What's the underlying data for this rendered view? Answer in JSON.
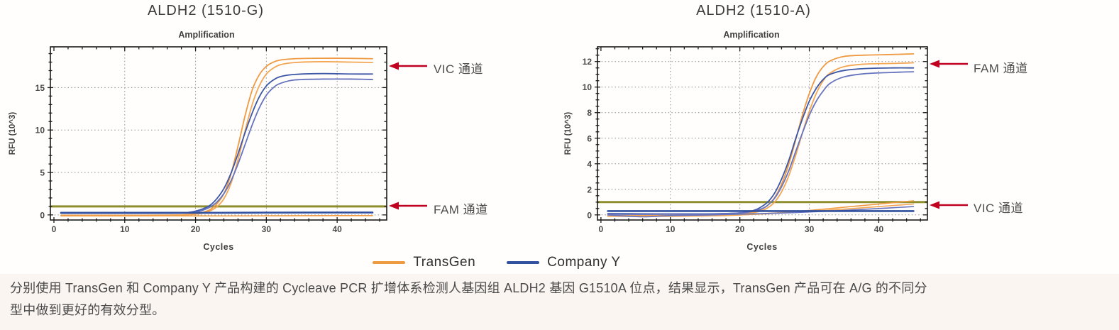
{
  "page": {
    "background": "#fffefc",
    "caption_background": "#faf5f1"
  },
  "chart_data": [
    {
      "type": "line",
      "title": "ALDH2 (1510-G)",
      "subtitle": "Amplification",
      "xlabel": "Cycles",
      "ylabel": "RFU (10^3)",
      "xlim": [
        -0.5,
        47
      ],
      "ylim": [
        -0.6,
        19.8
      ],
      "xticks": [
        0,
        10,
        20,
        30,
        40
      ],
      "yticks": [
        0,
        5,
        10,
        15
      ],
      "x_minor_step": 2,
      "y_minor_step": 1,
      "x_gridlines": [
        10,
        20,
        30,
        40
      ],
      "grid": "dotted",
      "legend_position": "none",
      "threshold": {
        "y": 1.0,
        "color": "#8e8e2d"
      },
      "annotations": [
        {
          "label": "VIC 通道",
          "arrow": "left",
          "color": "#bf0021"
        },
        {
          "label": "FAM 通道",
          "arrow": "left",
          "color": "#bf0021"
        }
      ],
      "series": [
        {
          "name": "TransGen (VIC) rep1",
          "color": "#ef9a42",
          "width": 1.8,
          "points": [
            [
              1,
              -0.05
            ],
            [
              6,
              -0.05
            ],
            [
              12,
              -0.05
            ],
            [
              17,
              -0.02
            ],
            [
              19,
              0.05
            ],
            [
              20,
              0.12
            ],
            [
              21,
              0.3
            ],
            [
              22,
              0.6
            ],
            [
              23,
              1.3
            ],
            [
              24,
              2.5
            ],
            [
              25,
              4.8
            ],
            [
              26,
              8.1
            ],
            [
              27,
              11.7
            ],
            [
              28,
              14.7
            ],
            [
              29,
              16.5
            ],
            [
              30,
              17.5
            ],
            [
              31,
              18.0
            ],
            [
              32,
              18.25
            ],
            [
              34,
              18.4
            ],
            [
              37,
              18.45
            ],
            [
              41,
              18.45
            ],
            [
              45,
              18.4
            ]
          ]
        },
        {
          "name": "TransGen (VIC) rep2",
          "color": "#f3a755",
          "width": 1.8,
          "points": [
            [
              1,
              -0.1
            ],
            [
              8,
              -0.1
            ],
            [
              14,
              -0.08
            ],
            [
              18,
              0.0
            ],
            [
              20,
              0.08
            ],
            [
              21,
              0.2
            ],
            [
              22,
              0.45
            ],
            [
              23,
              0.95
            ],
            [
              24,
              1.9
            ],
            [
              25,
              3.7
            ],
            [
              26,
              6.5
            ],
            [
              27,
              9.9
            ],
            [
              28,
              13.0
            ],
            [
              29,
              15.2
            ],
            [
              30,
              16.6
            ],
            [
              31,
              17.3
            ],
            [
              32,
              17.7
            ],
            [
              34,
              17.95
            ],
            [
              38,
              18.05
            ],
            [
              42,
              18.0
            ],
            [
              45,
              17.95
            ]
          ]
        },
        {
          "name": "Company Y (VIC) rep1",
          "color": "#3c57a6",
          "width": 1.8,
          "points": [
            [
              1,
              0.22
            ],
            [
              8,
              0.22
            ],
            [
              14,
              0.22
            ],
            [
              18,
              0.25
            ],
            [
              19,
              0.3
            ],
            [
              20,
              0.45
            ],
            [
              21,
              0.7
            ],
            [
              22,
              1.1
            ],
            [
              23,
              1.9
            ],
            [
              24,
              3.1
            ],
            [
              25,
              4.9
            ],
            [
              26,
              7.2
            ],
            [
              27,
              9.7
            ],
            [
              28,
              12.0
            ],
            [
              29,
              13.9
            ],
            [
              30,
              15.2
            ],
            [
              31,
              15.9
            ],
            [
              32,
              16.3
            ],
            [
              34,
              16.55
            ],
            [
              38,
              16.65
            ],
            [
              42,
              16.6
            ],
            [
              45,
              16.6
            ]
          ]
        },
        {
          "name": "Company Y (VIC) rep2",
          "color": "#6673be",
          "width": 1.8,
          "points": [
            [
              1,
              0.2
            ],
            [
              8,
              0.2
            ],
            [
              15,
              0.2
            ],
            [
              18,
              0.22
            ],
            [
              20,
              0.35
            ],
            [
              21,
              0.55
            ],
            [
              22,
              0.9
            ],
            [
              23,
              1.5
            ],
            [
              24,
              2.5
            ],
            [
              25,
              4.0
            ],
            [
              26,
              6.0
            ],
            [
              27,
              8.3
            ],
            [
              28,
              10.6
            ],
            [
              29,
              12.6
            ],
            [
              30,
              14.1
            ],
            [
              31,
              15.0
            ],
            [
              32,
              15.5
            ],
            [
              34,
              15.9
            ],
            [
              38,
              16.0
            ],
            [
              42,
              16.0
            ],
            [
              45,
              15.95
            ]
          ]
        },
        {
          "name": "Company Y (FAM) baseline",
          "color": "#30509f",
          "width": 2.6,
          "points": [
            [
              1,
              0.25
            ],
            [
              10,
              0.25
            ],
            [
              20,
              0.25
            ],
            [
              30,
              0.27
            ],
            [
              38,
              0.28
            ],
            [
              45,
              0.28
            ]
          ]
        },
        {
          "name": "TransGen (FAM) baseline",
          "color": "#ef9a42",
          "width": 1.6,
          "points": [
            [
              1,
              -0.1
            ],
            [
              8,
              -0.12
            ],
            [
              16,
              -0.1
            ],
            [
              24,
              -0.12
            ],
            [
              32,
              -0.1
            ],
            [
              40,
              -0.08
            ],
            [
              45,
              -0.08
            ]
          ]
        }
      ]
    },
    {
      "type": "line",
      "title": "ALDH2 (1510-A)",
      "subtitle": "Amplification",
      "xlabel": "Cycles",
      "ylabel": "RFU (10^3)",
      "xlim": [
        -0.5,
        47
      ],
      "ylim": [
        -0.4,
        13.15
      ],
      "xticks": [
        0,
        10,
        20,
        30,
        40
      ],
      "yticks": [
        0,
        2,
        4,
        6,
        8,
        10,
        12
      ],
      "x_minor_step": 2,
      "y_minor_step": 0.5,
      "x_gridlines": [
        10,
        20,
        30,
        40
      ],
      "grid": "dotted",
      "legend_position": "none",
      "threshold": {
        "y": 1.0,
        "color": "#8e8e2d"
      },
      "annotations": [
        {
          "label": "FAM 通道",
          "arrow": "left",
          "color": "#bf0021"
        },
        {
          "label": "VIC 通道",
          "arrow": "left",
          "color": "#bf0021"
        }
      ],
      "series": [
        {
          "name": "TransGen (FAM) rep1",
          "color": "#ef9a42",
          "width": 1.8,
          "points": [
            [
              1,
              -0.05
            ],
            [
              8,
              -0.05
            ],
            [
              15,
              -0.03
            ],
            [
              20,
              0.05
            ],
            [
              22,
              0.2
            ],
            [
              23,
              0.4
            ],
            [
              24,
              0.75
            ],
            [
              25,
              1.35
            ],
            [
              26,
              2.4
            ],
            [
              27,
              3.9
            ],
            [
              28,
              5.8
            ],
            [
              29,
              7.8
            ],
            [
              30,
              9.5
            ],
            [
              31,
              10.8
            ],
            [
              32,
              11.6
            ],
            [
              33,
              12.05
            ],
            [
              35,
              12.4
            ],
            [
              38,
              12.5
            ],
            [
              42,
              12.55
            ],
            [
              45,
              12.6
            ]
          ]
        },
        {
          "name": "TransGen (FAM) rep2",
          "color": "#f3a755",
          "width": 1.8,
          "points": [
            [
              1,
              -0.1
            ],
            [
              10,
              -0.08
            ],
            [
              17,
              -0.02
            ],
            [
              21,
              0.1
            ],
            [
              23,
              0.3
            ],
            [
              24,
              0.55
            ],
            [
              25,
              1.0
            ],
            [
              26,
              1.8
            ],
            [
              27,
              3.0
            ],
            [
              28,
              4.6
            ],
            [
              29,
              6.4
            ],
            [
              30,
              8.1
            ],
            [
              31,
              9.5
            ],
            [
              32,
              10.5
            ],
            [
              33,
              11.1
            ],
            [
              35,
              11.6
            ],
            [
              38,
              11.8
            ],
            [
              42,
              11.85
            ],
            [
              45,
              11.9
            ]
          ]
        },
        {
          "name": "Company Y (FAM) rep1",
          "color": "#3c57a6",
          "width": 1.8,
          "points": [
            [
              1,
              0.1
            ],
            [
              8,
              0.08
            ],
            [
              15,
              0.08
            ],
            [
              20,
              0.15
            ],
            [
              22,
              0.35
            ],
            [
              23,
              0.6
            ],
            [
              24,
              1.0
            ],
            [
              25,
              1.7
            ],
            [
              26,
              2.8
            ],
            [
              27,
              4.2
            ],
            [
              28,
              5.9
            ],
            [
              29,
              7.5
            ],
            [
              30,
              8.9
            ],
            [
              31,
              9.9
            ],
            [
              32,
              10.6
            ],
            [
              33,
              11.0
            ],
            [
              35,
              11.3
            ],
            [
              38,
              11.45
            ],
            [
              42,
              11.5
            ],
            [
              45,
              11.5
            ]
          ]
        },
        {
          "name": "Company Y (FAM) rep2",
          "color": "#6673be",
          "width": 1.8,
          "points": [
            [
              1,
              0.05
            ],
            [
              10,
              0.05
            ],
            [
              17,
              0.08
            ],
            [
              21,
              0.2
            ],
            [
              23,
              0.45
            ],
            [
              24,
              0.75
            ],
            [
              25,
              1.3
            ],
            [
              26,
              2.2
            ],
            [
              27,
              3.4
            ],
            [
              28,
              4.9
            ],
            [
              29,
              6.4
            ],
            [
              30,
              7.8
            ],
            [
              31,
              8.9
            ],
            [
              32,
              9.7
            ],
            [
              33,
              10.3
            ],
            [
              35,
              10.8
            ],
            [
              38,
              11.05
            ],
            [
              42,
              11.15
            ],
            [
              45,
              11.2
            ]
          ]
        },
        {
          "name": "TransGen (VIC) baseline 1",
          "color": "#ef9a42",
          "width": 1.6,
          "points": [
            [
              1,
              -0.1
            ],
            [
              6,
              -0.12
            ],
            [
              12,
              -0.1
            ],
            [
              18,
              -0.05
            ],
            [
              22,
              0.05
            ],
            [
              26,
              0.18
            ],
            [
              30,
              0.35
            ],
            [
              34,
              0.55
            ],
            [
              38,
              0.75
            ],
            [
              42,
              0.95
            ],
            [
              45,
              1.1
            ]
          ]
        },
        {
          "name": "TransGen (VIC) baseline 2",
          "color": "#f3a755",
          "width": 1.6,
          "points": [
            [
              1,
              -0.05
            ],
            [
              8,
              -0.08
            ],
            [
              14,
              -0.05
            ],
            [
              20,
              0.0
            ],
            [
              25,
              0.12
            ],
            [
              30,
              0.28
            ],
            [
              35,
              0.45
            ],
            [
              40,
              0.65
            ],
            [
              45,
              0.85
            ]
          ]
        },
        {
          "name": "Company Y (VIC) baseline 1",
          "color": "#6673be",
          "width": 1.6,
          "points": [
            [
              1,
              0.0
            ],
            [
              6,
              -0.15
            ],
            [
              10,
              -0.05
            ],
            [
              16,
              0.0
            ],
            [
              22,
              0.08
            ],
            [
              28,
              0.18
            ],
            [
              34,
              0.32
            ],
            [
              40,
              0.5
            ],
            [
              45,
              0.65
            ]
          ]
        },
        {
          "name": "Company Y (VIC) baseline 2",
          "color": "#30509f",
          "width": 2.6,
          "points": [
            [
              1,
              0.3
            ],
            [
              10,
              0.3
            ],
            [
              20,
              0.3
            ],
            [
              30,
              0.3
            ],
            [
              40,
              0.3
            ],
            [
              45,
              0.3
            ]
          ]
        }
      ]
    }
  ],
  "legend": {
    "items": [
      {
        "label": "TransGen",
        "color": "#ee9a40"
      },
      {
        "label": "Company Y",
        "color": "#32519e"
      }
    ]
  },
  "caption": {
    "line1": "分别使用 TransGen 和 Company Y 产品构建的 Cycleave PCR 扩增体系检测人基因组 ALDH2 基因 G1510A 位点，结果显示，TransGen 产品可在 A/G 的不同分",
    "line2": "型中做到更好的有效分型。"
  }
}
